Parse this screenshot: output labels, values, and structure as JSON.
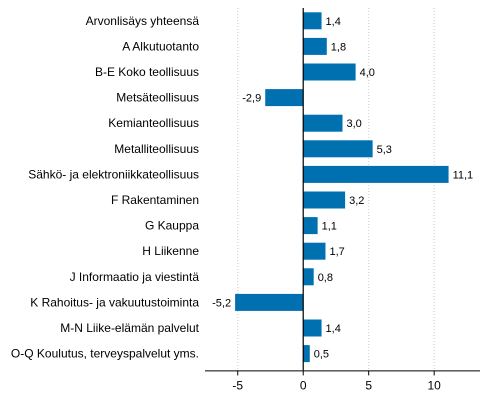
{
  "chart_data": {
    "type": "bar",
    "orientation": "horizontal",
    "categories": [
      "Arvonlisäys yhteensä",
      "A Alkutuotanto",
      "B-E Koko teollisuus",
      "Metsäteollisuus",
      "Kemianteollisuus",
      "Metalliteollisuus",
      "Sähkö- ja elektroniikkateollisuus",
      "F Rakentaminen",
      "G Kauppa",
      "H Liikenne",
      "J Informaatio ja viestintä",
      "K Rahoitus- ja vakuutustoiminta",
      "M-N Liike-elämän palvelut",
      "O-Q Koulutus, terveyspalvelut yms."
    ],
    "values": [
      1.4,
      1.8,
      4.0,
      -2.9,
      3.0,
      5.3,
      11.1,
      3.2,
      1.1,
      1.7,
      0.8,
      -5.2,
      1.4,
      0.5
    ],
    "value_labels": [
      "1,4",
      "1,8",
      "4,0",
      "-2,9",
      "3,0",
      "5,3",
      "11,1",
      "3,2",
      "1,1",
      "1,7",
      "0,8",
      "-5,2",
      "1,4",
      "0,5"
    ],
    "xlim": [
      -7.5,
      13.5
    ],
    "xticks": [
      -5,
      0,
      5,
      10
    ],
    "xtick_labels": [
      "-5",
      "0",
      "5",
      "10"
    ],
    "grid": true,
    "legend": "none",
    "bar_color": "#0070b0",
    "grid_color": "#cccccc",
    "axis_color": "#000000"
  }
}
